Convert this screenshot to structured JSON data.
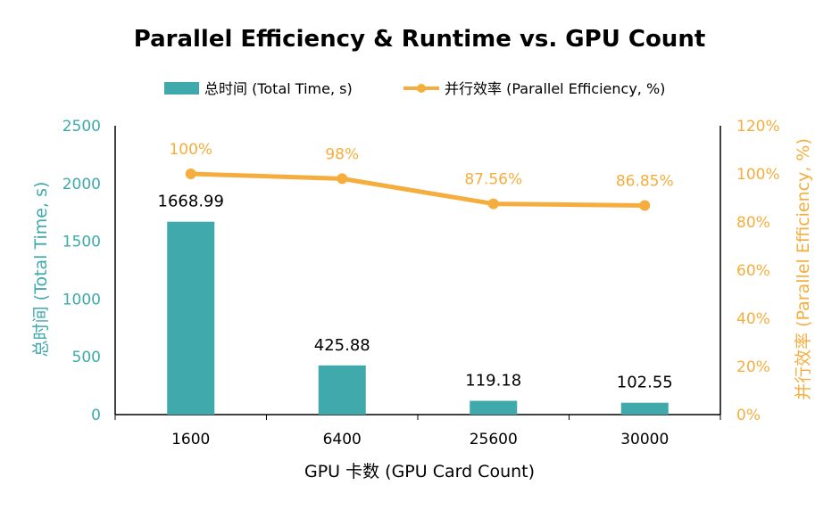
{
  "colors": {
    "bar": "#3fa9ab",
    "line": "#f5ae3d",
    "axis": "#000000"
  },
  "chart_data": {
    "type": "bar",
    "title": "Parallel Efficiency & Runtime vs. GPU Count",
    "xlabel": "GPU 卡数 (GPU Card Count)",
    "ylabel": "总时间 (Total Time, s)",
    "y2label": "并行效率 (Parallel Efficiency, %)",
    "categories": [
      "1600",
      "6400",
      "25600",
      "30000"
    ],
    "ylim": [
      0,
      2500
    ],
    "yticks": [
      "0",
      "500",
      "1000",
      "1500",
      "2000",
      "2500"
    ],
    "y2lim": [
      0,
      120
    ],
    "y2ticks": [
      "0%",
      "20%",
      "40%",
      "60%",
      "80%",
      "100%",
      "120%"
    ],
    "legend_position": "top",
    "series": [
      {
        "name": "总时间 (Total Time, s)",
        "type": "bar",
        "axis": "left",
        "values": [
          1668.99,
          425.88,
          119.18,
          102.55
        ],
        "labels": [
          "1668.99",
          "425.88",
          "119.18",
          "102.55"
        ]
      },
      {
        "name": "并行效率 (Parallel Efficiency, %)",
        "type": "line",
        "axis": "right",
        "values": [
          100,
          98,
          87.56,
          86.85
        ],
        "labels": [
          "100%",
          "98%",
          "87.56%",
          "86.85%"
        ]
      }
    ]
  }
}
